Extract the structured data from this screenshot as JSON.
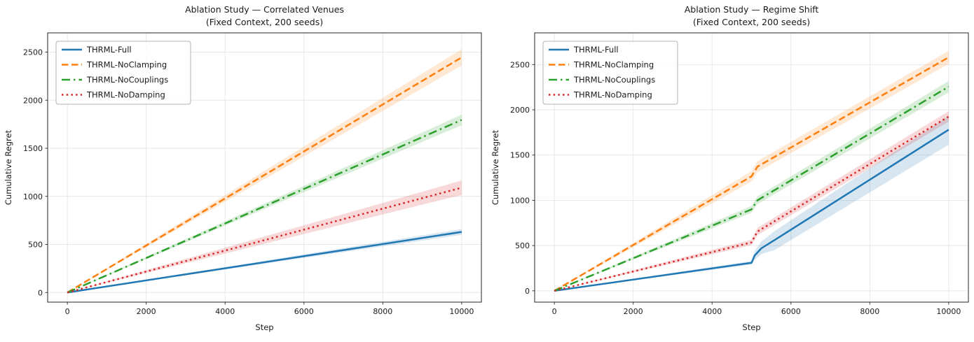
{
  "figure": {
    "background": "#ffffff",
    "text_color": "#1a1a1a",
    "grid_color": "#e6e6e6",
    "spine_color": "#262626"
  },
  "chart_data": [
    {
      "type": "line",
      "title": "Ablation Study — Correlated Venues",
      "subtitle": "(Fixed Context, 200 seeds)",
      "xlabel": "Step",
      "ylabel": "Cumulative Regret",
      "x_ticks": [
        0,
        2000,
        4000,
        6000,
        8000,
        10000
      ],
      "y_ticks": [
        0,
        500,
        1000,
        1500,
        2000,
        2500
      ],
      "xlim": [
        -500,
        10500
      ],
      "ylim": [
        -100,
        2700
      ],
      "grid": true,
      "legend_position": "upper-left",
      "series": [
        {
          "name": "THRML-Full",
          "color": "#1f77b4",
          "style": "solid",
          "x": [
            0,
            10000
          ],
          "y": [
            0,
            630
          ],
          "band_low": [
            0,
            600
          ],
          "band_high": [
            0,
            660
          ]
        },
        {
          "name": "THRML-NoClamping",
          "color": "#ff7f0e",
          "style": "dashed",
          "x": [
            0,
            10000
          ],
          "y": [
            0,
            2445
          ],
          "band_low": [
            0,
            2360
          ],
          "band_high": [
            0,
            2530
          ]
        },
        {
          "name": "THRML-NoCouplings",
          "color": "#2ca02c",
          "style": "dashdot",
          "x": [
            0,
            10000
          ],
          "y": [
            0,
            1795
          ],
          "band_low": [
            0,
            1740
          ],
          "band_high": [
            0,
            1850
          ]
        },
        {
          "name": "THRML-NoDamping",
          "color": "#d62728",
          "style": "dotted",
          "x": [
            0,
            10000
          ],
          "y": [
            0,
            1090
          ],
          "band_low": [
            0,
            1015
          ],
          "band_high": [
            0,
            1165
          ]
        }
      ]
    },
    {
      "type": "line",
      "title": "Ablation Study — Regime Shift",
      "subtitle": "(Fixed Context, 200 seeds)",
      "xlabel": "Step",
      "ylabel": "Cumulative Regret",
      "x_ticks": [
        0,
        2000,
        4000,
        6000,
        8000,
        10000
      ],
      "y_ticks": [
        0,
        500,
        1000,
        1500,
        2000,
        2500
      ],
      "xlim": [
        -500,
        10500
      ],
      "ylim": [
        -125,
        2850
      ],
      "grid": true,
      "legend_position": "upper-left",
      "series": [
        {
          "name": "THRML-Full",
          "color": "#1f77b4",
          "style": "solid",
          "x": [
            0,
            5000,
            5080,
            5250,
            5600,
            10000
          ],
          "y": [
            0,
            310,
            390,
            470,
            565,
            1780
          ],
          "band_low": [
            0,
            290,
            340,
            405,
            455,
            1615
          ],
          "band_high": [
            0,
            330,
            440,
            545,
            665,
            1930
          ]
        },
        {
          "name": "THRML-NoClamping",
          "color": "#ff7f0e",
          "style": "dashed",
          "x": [
            0,
            5000,
            5150,
            10000
          ],
          "y": [
            0,
            1265,
            1372,
            2580
          ],
          "band_low": [
            0,
            1208,
            1312,
            2508
          ],
          "band_high": [
            0,
            1322,
            1432,
            2652
          ]
        },
        {
          "name": "THRML-NoCouplings",
          "color": "#2ca02c",
          "style": "dashdot",
          "x": [
            0,
            5000,
            5150,
            10000
          ],
          "y": [
            0,
            900,
            1000,
            2255
          ],
          "band_low": [
            0,
            862,
            958,
            2192
          ],
          "band_high": [
            0,
            938,
            1042,
            2318
          ]
        },
        {
          "name": "THRML-NoDamping",
          "color": "#d62728",
          "style": "dotted",
          "x": [
            0,
            5000,
            5150,
            10000
          ],
          "y": [
            0,
            535,
            655,
            1925
          ],
          "band_low": [
            0,
            505,
            615,
            1870
          ],
          "band_high": [
            0,
            565,
            695,
            1985
          ]
        }
      ]
    }
  ]
}
